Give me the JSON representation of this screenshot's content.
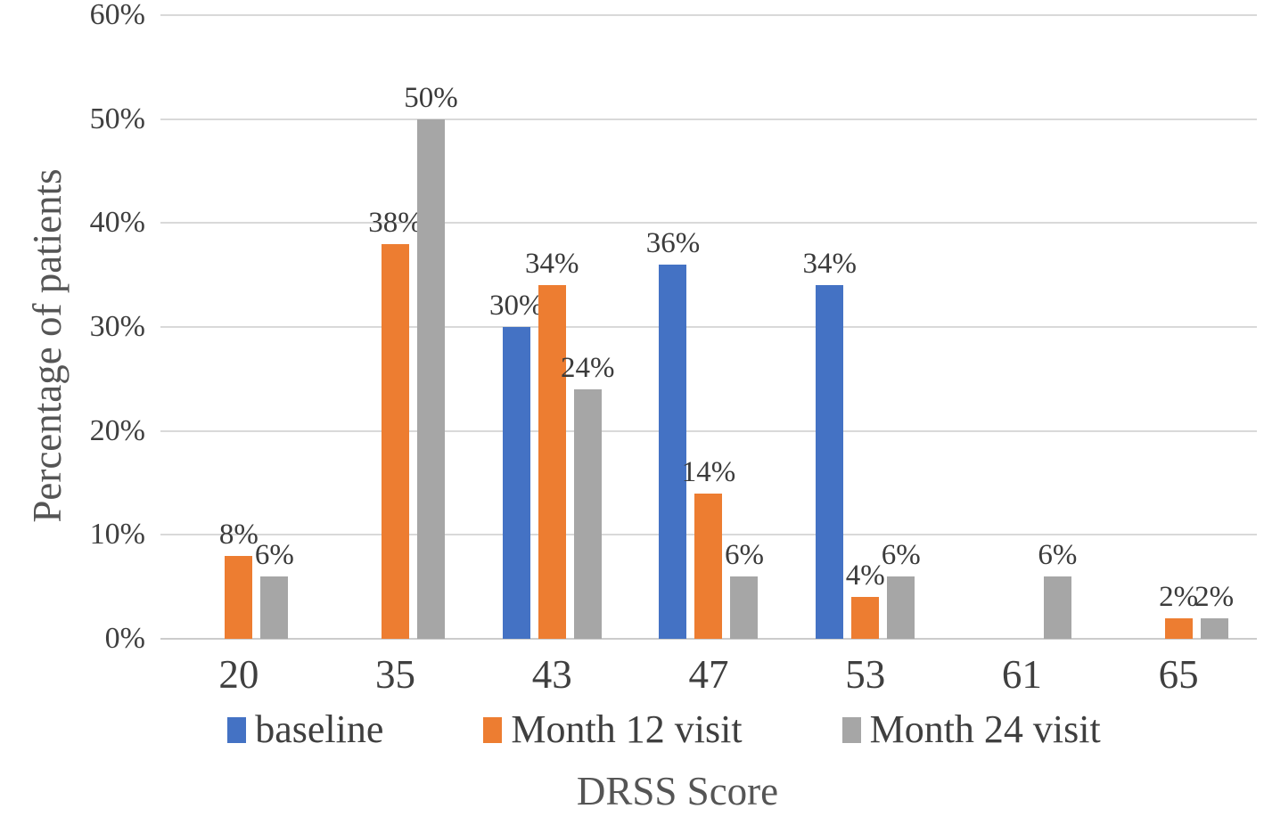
{
  "chart_data": {
    "type": "bar",
    "title": "",
    "xlabel": "DRSS Score",
    "ylabel": "Percentage of patients",
    "categories": [
      "20",
      "35",
      "43",
      "47",
      "53",
      "61",
      "65"
    ],
    "series": [
      {
        "name": "baseline",
        "color": "#4472C4",
        "values": [
          null,
          null,
          30,
          36,
          34,
          null,
          null
        ]
      },
      {
        "name": "Month 12 visit",
        "color": "#ED7D31",
        "values": [
          8,
          38,
          34,
          14,
          4,
          null,
          2
        ]
      },
      {
        "name": "Month 24 visit",
        "color": "#A6A6A6",
        "values": [
          6,
          50,
          24,
          6,
          6,
          6,
          2
        ]
      }
    ],
    "data_labels": [
      {
        "series": "baseline",
        "labels": [
          "",
          "",
          "30%",
          "36%",
          "34%",
          "",
          ""
        ]
      },
      {
        "series": "Month 12 visit",
        "labels": [
          "8%",
          "38%",
          "34%",
          "14%",
          "4%",
          "",
          "2%"
        ]
      },
      {
        "series": "Month 24 visit",
        "labels": [
          "6%",
          "50%",
          "24%",
          "6%",
          "6%",
          "6%",
          "2%"
        ]
      }
    ],
    "y_ticks": [
      "0%",
      "10%",
      "20%",
      "30%",
      "40%",
      "50%",
      "60%"
    ],
    "ylim": [
      0,
      60
    ],
    "grid": true,
    "legend_position": "bottom",
    "gridline_color": "#D9D9D9",
    "text_color": "#3F3F3F",
    "axis_title_color": "#555555"
  }
}
